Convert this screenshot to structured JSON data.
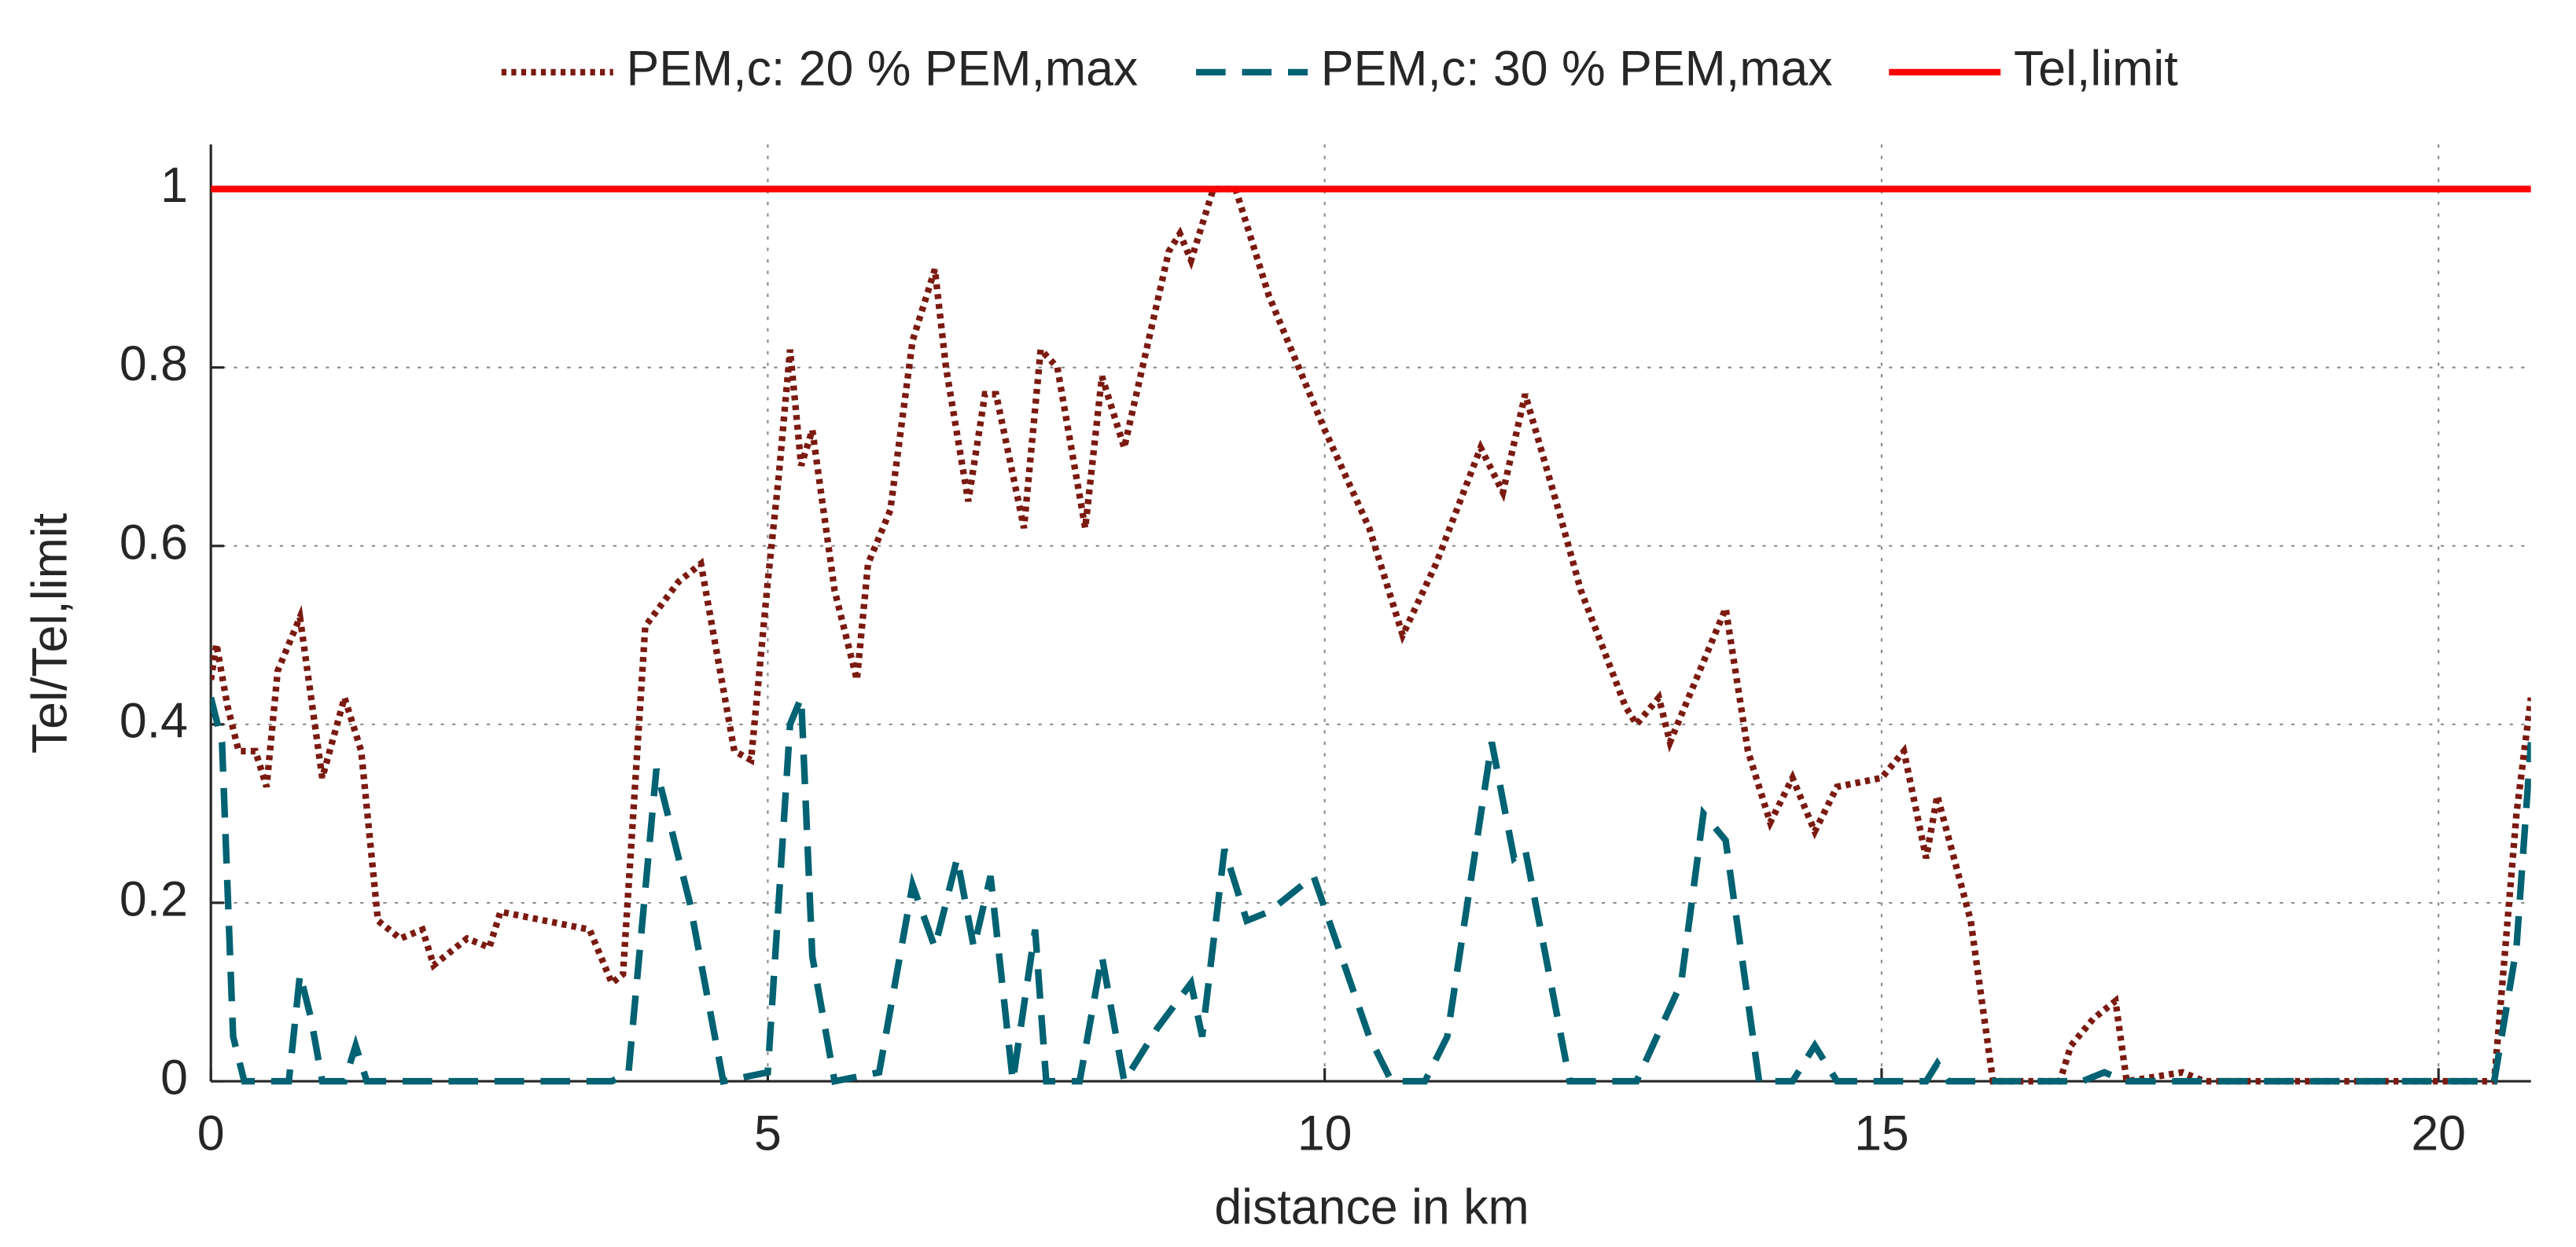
{
  "chart_data": {
    "type": "line",
    "xlabel": "distance in km",
    "ylabel": "Tel/Tel,limit",
    "xlim": [
      0,
      20.83
    ],
    "ylim": [
      0,
      1.05
    ],
    "xticks": [
      0,
      5,
      10,
      15,
      20
    ],
    "yticks": [
      0,
      0.2,
      0.4,
      0.6,
      0.8,
      1
    ],
    "grid": true,
    "legend": "top",
    "series": [
      {
        "name": "PEM,c: 20 % PEM,max",
        "color": "#7b1a10",
        "style": "dotted",
        "x": [
          0,
          0.05,
          0.15,
          0.25,
          0.4,
          0.5,
          0.6,
          0.8,
          1.0,
          1.2,
          1.35,
          1.5,
          1.7,
          1.9,
          2.0,
          2.3,
          2.5,
          2.6,
          3.0,
          3.4,
          3.6,
          3.7,
          3.9,
          4.2,
          4.4,
          4.7,
          4.85,
          5.0,
          5.1,
          5.2,
          5.3,
          5.4,
          5.6,
          5.8,
          5.9,
          6.1,
          6.3,
          6.5,
          6.6,
          6.8,
          6.95,
          7.05,
          7.3,
          7.45,
          7.6,
          7.85,
          8.0,
          8.2,
          8.6,
          8.7,
          8.8,
          9.0,
          9.2,
          9.5,
          10.0,
          10.4,
          10.7,
          11.0,
          11.4,
          11.6,
          11.8,
          12.1,
          12.3,
          12.7,
          12.8,
          13.0,
          13.1,
          13.4,
          13.6,
          13.8,
          14.0,
          14.2,
          14.4,
          14.6,
          15.0,
          15.2,
          15.4,
          15.5,
          15.8,
          16.0,
          16.6,
          16.7,
          16.9,
          17.1,
          17.2,
          17.7,
          17.9,
          20.5,
          20.7,
          20.83
        ],
        "values": [
          0.45,
          0.49,
          0.42,
          0.37,
          0.37,
          0.33,
          0.46,
          0.52,
          0.34,
          0.43,
          0.37,
          0.18,
          0.16,
          0.17,
          0.13,
          0.16,
          0.15,
          0.19,
          0.18,
          0.17,
          0.11,
          0.12,
          0.51,
          0.56,
          0.58,
          0.37,
          0.36,
          0.56,
          0.68,
          0.82,
          0.69,
          0.73,
          0.55,
          0.45,
          0.58,
          0.64,
          0.83,
          0.91,
          0.8,
          0.65,
          0.77,
          0.77,
          0.62,
          0.82,
          0.8,
          0.62,
          0.79,
          0.71,
          0.93,
          0.95,
          0.92,
          1.0,
          1.0,
          0.88,
          0.73,
          0.62,
          0.5,
          0.58,
          0.71,
          0.66,
          0.77,
          0.64,
          0.55,
          0.42,
          0.4,
          0.43,
          0.38,
          0.47,
          0.53,
          0.37,
          0.29,
          0.34,
          0.28,
          0.33,
          0.34,
          0.37,
          0.25,
          0.32,
          0.18,
          0,
          0,
          0.04,
          0.07,
          0.09,
          0,
          0.01,
          0,
          0,
          0.3,
          0.43
        ]
      },
      {
        "name": "PEM,c: 30 % PEM,max",
        "color": "#006272",
        "style": "dashed",
        "x": [
          0,
          0.1,
          0.2,
          0.3,
          0.7,
          0.8,
          0.9,
          1.0,
          1.2,
          1.3,
          1.4,
          3.6,
          3.75,
          4.0,
          4.3,
          4.6,
          5.0,
          5.2,
          5.3,
          5.4,
          5.6,
          6.0,
          6.3,
          6.5,
          6.7,
          6.85,
          7.0,
          7.2,
          7.4,
          7.5,
          7.8,
          8.0,
          8.2,
          8.5,
          8.8,
          8.9,
          9.1,
          9.3,
          9.5,
          9.9,
          10.4,
          10.6,
          10.9,
          11.1,
          11.5,
          11.7,
          11.8,
          12.2,
          12.8,
          13.2,
          13.4,
          13.6,
          13.9,
          14.2,
          14.4,
          14.6,
          15.4,
          15.5,
          15.6,
          16.8,
          17.0,
          17.2,
          20.5,
          20.7,
          20.83
        ],
        "values": [
          0.43,
          0.38,
          0.05,
          0,
          0,
          0.12,
          0.07,
          0,
          0,
          0.04,
          0,
          0,
          0.01,
          0.35,
          0.2,
          0,
          0.01,
          0.4,
          0.43,
          0.14,
          0,
          0.01,
          0.22,
          0.15,
          0.25,
          0.15,
          0.23,
          0,
          0.17,
          0,
          0,
          0.14,
          0,
          0.06,
          0.11,
          0.05,
          0.26,
          0.18,
          0.19,
          0.23,
          0.05,
          0,
          0,
          0.05,
          0.38,
          0.25,
          0.26,
          0,
          0,
          0.11,
          0.3,
          0.27,
          0,
          0,
          0.04,
          0,
          0,
          0.02,
          0,
          0,
          0.01,
          0,
          0,
          0.15,
          0.38
        ]
      },
      {
        "name": "Tel,limit",
        "color": "#ff0000",
        "style": "solid",
        "x": [
          0,
          20.83
        ],
        "values": [
          1,
          1
        ]
      }
    ]
  }
}
